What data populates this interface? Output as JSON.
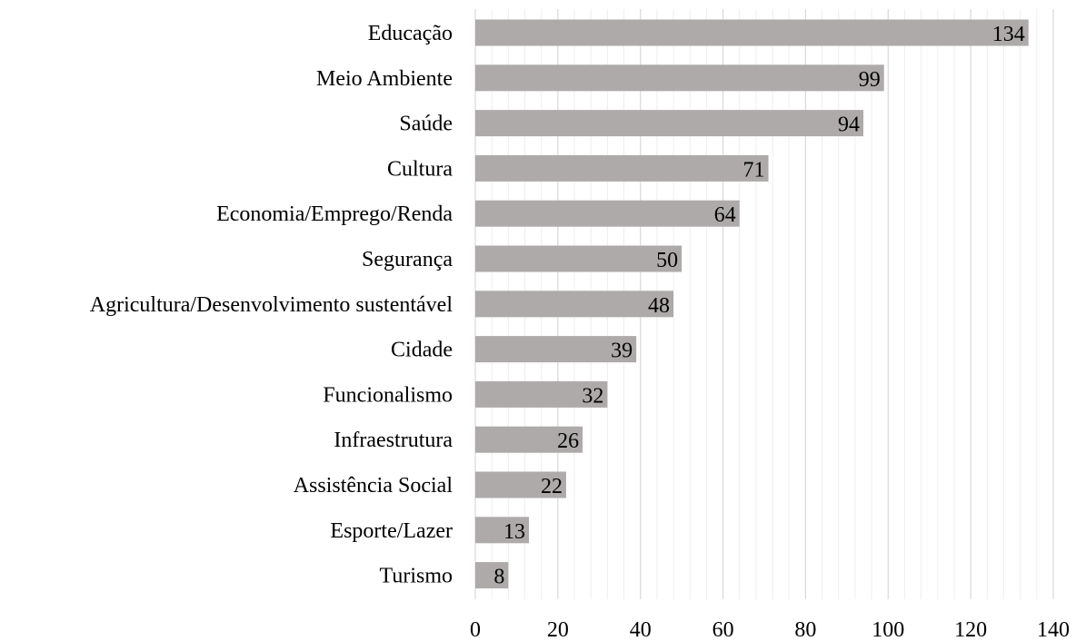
{
  "chart_data": {
    "type": "bar",
    "orientation": "horizontal",
    "categories": [
      "Educação",
      "Meio Ambiente",
      "Saúde",
      "Cultura",
      "Economia/Emprego/Renda",
      "Segurança",
      "Agricultura/Desenvolvimento sustentável",
      "Cidade",
      "Funcionalismo",
      "Infraestrutura",
      "Assistência Social",
      "Esporte/Lazer",
      "Turismo"
    ],
    "values": [
      134,
      99,
      94,
      71,
      64,
      50,
      48,
      39,
      32,
      26,
      22,
      13,
      8
    ],
    "xlim": [
      0,
      140
    ],
    "x_ticks": [
      0,
      20,
      40,
      60,
      80,
      100,
      120,
      140
    ],
    "grid": "vertical major and minor gridlines",
    "data_labels": "inside end of bars",
    "legend": "none",
    "bar_color": "#aeaaaa",
    "major_grid_color": "#d9d9d9",
    "minor_grid_color": "#eeeeee"
  }
}
